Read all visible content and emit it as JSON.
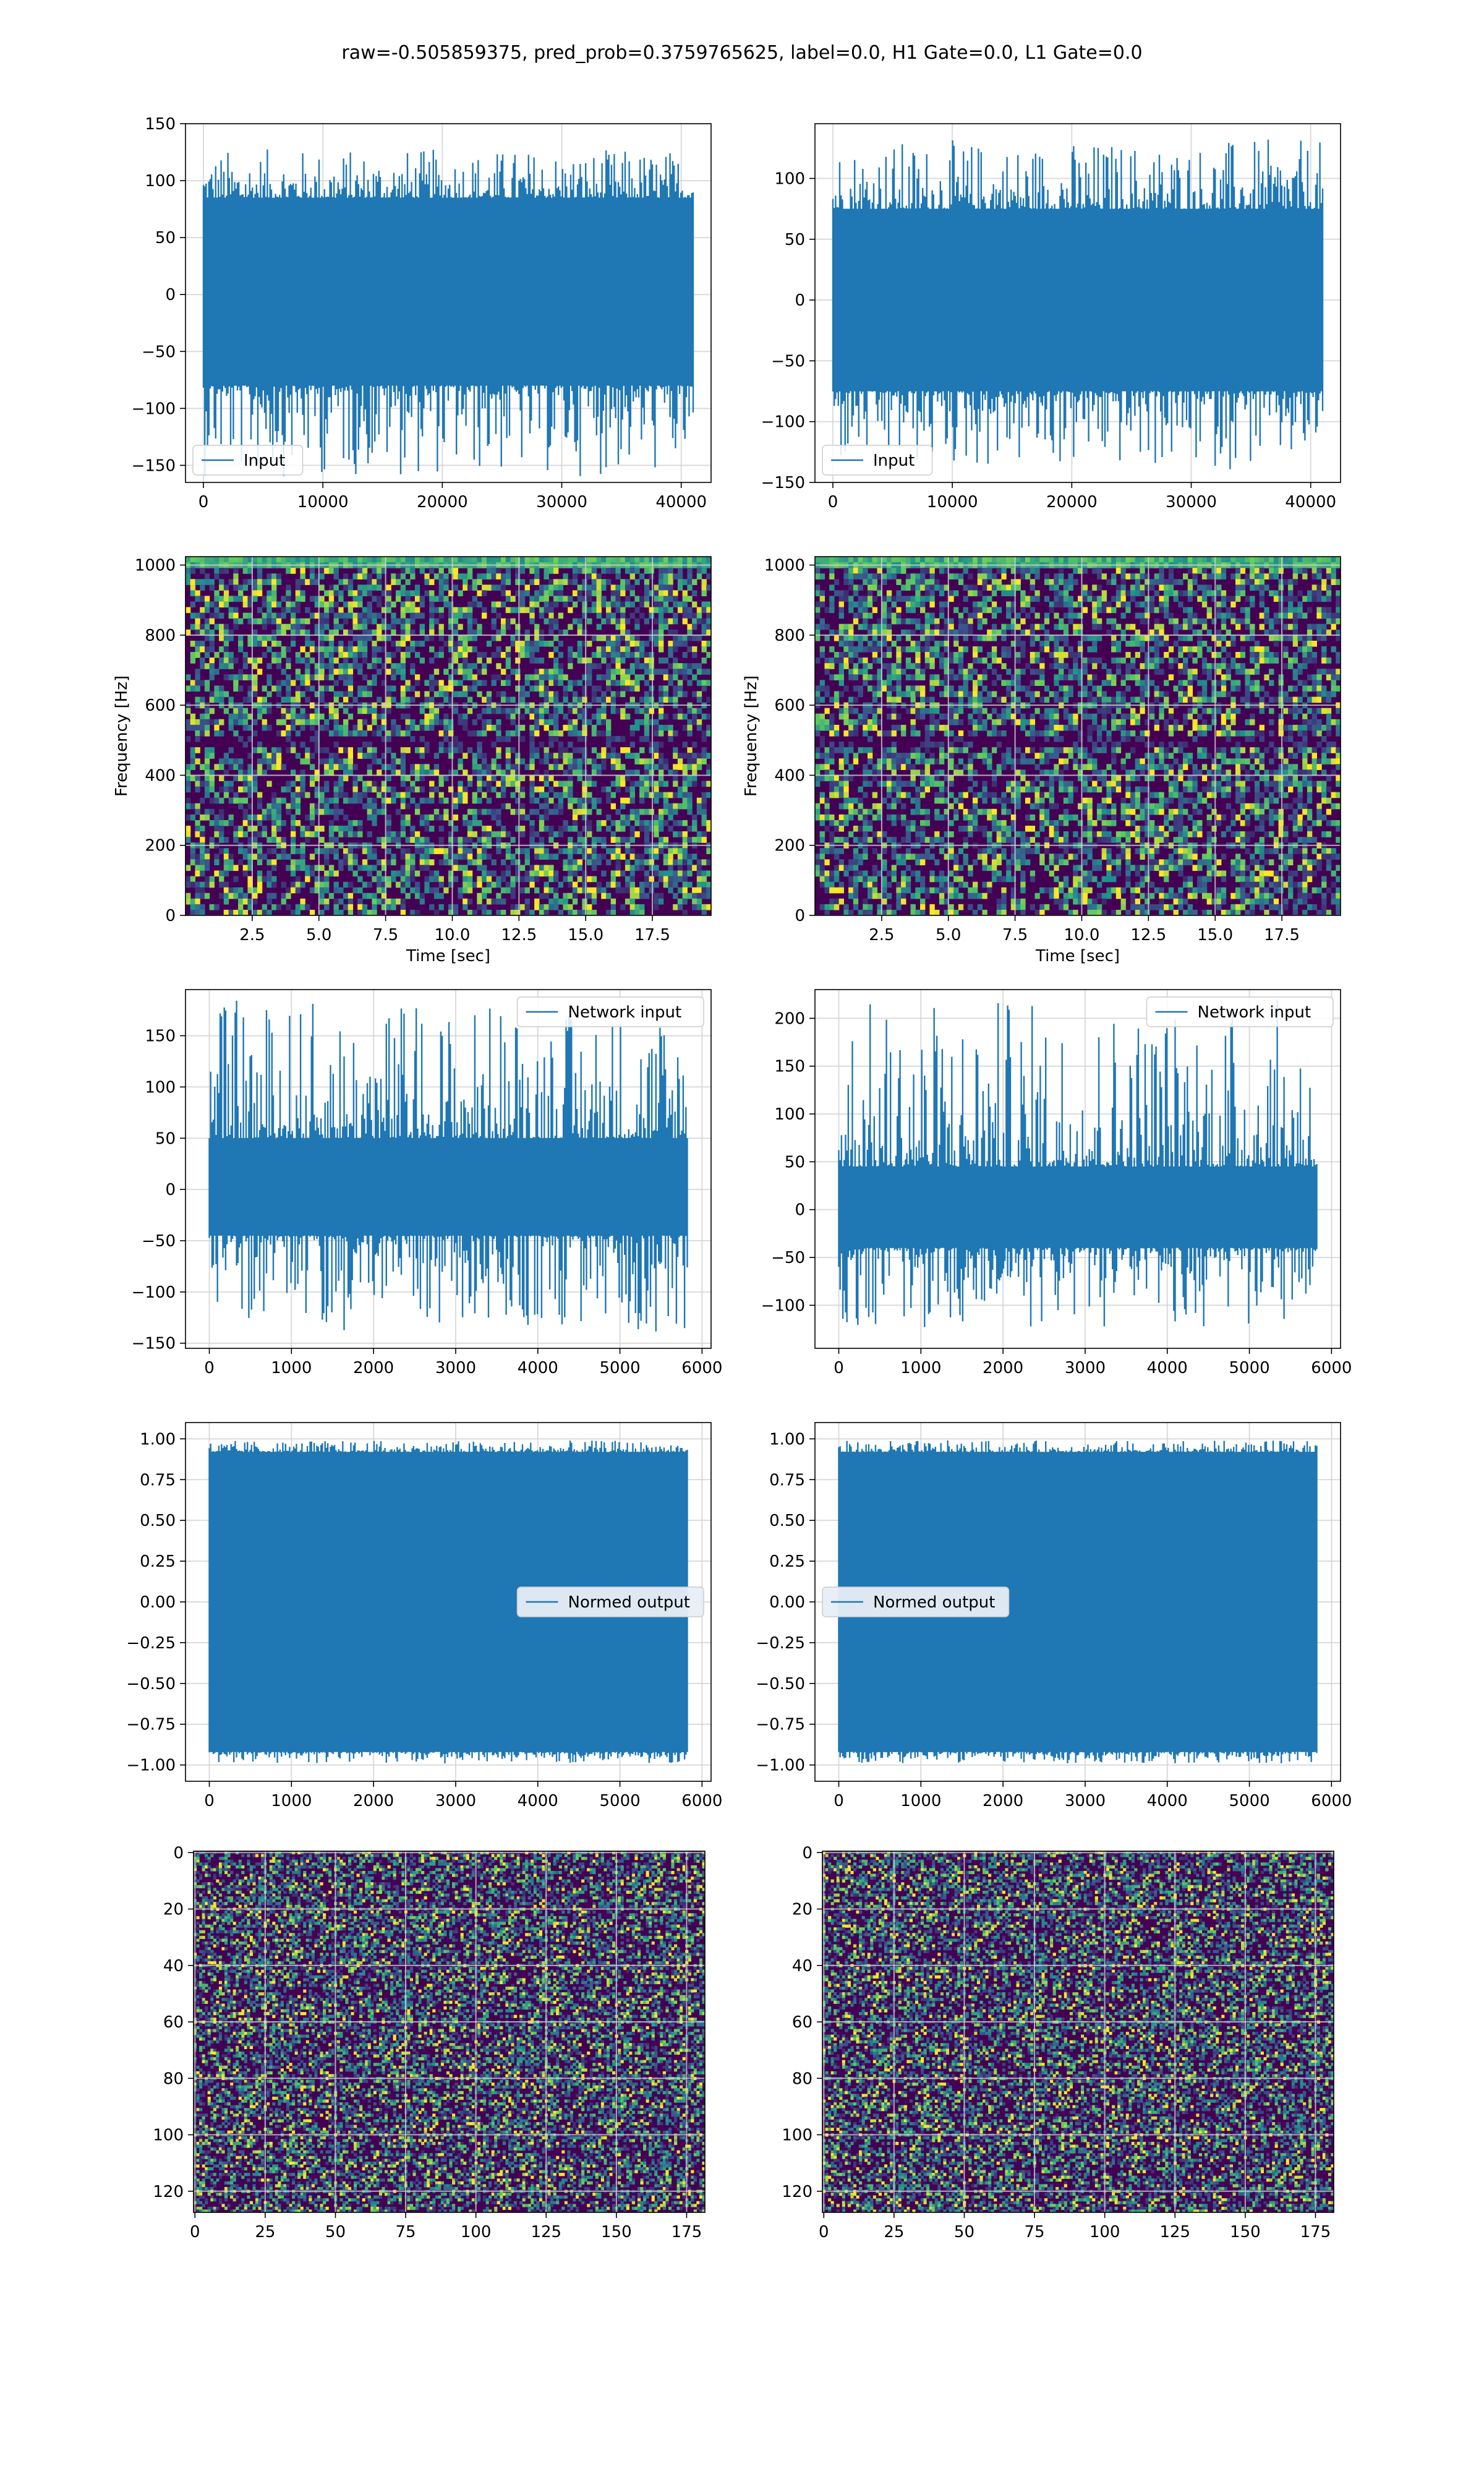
{
  "suptitle": "raw=-0.505859375, pred_prob=0.3759765625, label=0.0, H1 Gate=0.0, L1 Gate=0.0",
  "colors": {
    "line": "#1f77b4",
    "grid": "#d3d3d3",
    "viridis_low": "#440154"
  },
  "chart_data": [
    {
      "type": "line",
      "panel": "row1-left",
      "xlim": [
        -1500,
        42500
      ],
      "ylim": [
        -165,
        150
      ],
      "xticks": [
        0,
        10000,
        20000,
        30000,
        40000
      ],
      "yticks": [
        -150,
        -100,
        -50,
        0,
        50,
        100,
        150
      ],
      "legend": {
        "label": "Input",
        "placement": "lower-left",
        "framealpha": "light"
      },
      "signal": {
        "x_start": 0,
        "x_end": 41000,
        "core_low": -80,
        "core_high": 85,
        "peak_low": -160,
        "peak_high": 128
      },
      "grid": true,
      "title": "",
      "xlabel": "",
      "ylabel": ""
    },
    {
      "type": "line",
      "panel": "row1-right",
      "xlim": [
        -1500,
        42500
      ],
      "ylim": [
        -150,
        145
      ],
      "xticks": [
        0,
        10000,
        20000,
        30000,
        40000
      ],
      "yticks": [
        -150,
        -100,
        -50,
        0,
        50,
        100
      ],
      "legend": {
        "label": "Input",
        "placement": "lower-left",
        "framealpha": "light"
      },
      "signal": {
        "x_start": 0,
        "x_end": 41000,
        "core_low": -75,
        "core_high": 75,
        "peak_low": -140,
        "peak_high": 132
      },
      "grid": true,
      "title": "",
      "xlabel": "",
      "ylabel": ""
    },
    {
      "type": "heatmap",
      "panel": "row2-left",
      "xlim": [
        0,
        19.7
      ],
      "ylim": [
        0,
        1024
      ],
      "xticks": [
        2.5,
        5.0,
        7.5,
        10.0,
        12.5,
        15.0,
        17.5
      ],
      "yticks": [
        0,
        200,
        400,
        600,
        800,
        1000
      ],
      "xlabel": "Time [sec]",
      "ylabel": "Frequency [Hz]",
      "grid": true,
      "colormap": "viridis",
      "title": ""
    },
    {
      "type": "heatmap",
      "panel": "row2-right",
      "xlim": [
        0,
        19.7
      ],
      "ylim": [
        0,
        1024
      ],
      "xticks": [
        2.5,
        5.0,
        7.5,
        10.0,
        12.5,
        15.0,
        17.5
      ],
      "yticks": [
        0,
        200,
        400,
        600,
        800,
        1000
      ],
      "xlabel": "Time [sec]",
      "ylabel": "Frequency [Hz]",
      "grid": true,
      "colormap": "viridis",
      "title": ""
    },
    {
      "type": "line",
      "panel": "row3-left",
      "xlim": [
        -290,
        6110
      ],
      "ylim": [
        -155,
        195
      ],
      "xticks": [
        0,
        1000,
        2000,
        3000,
        4000,
        5000,
        6000
      ],
      "yticks": [
        -150,
        -100,
        -50,
        0,
        50,
        100,
        150
      ],
      "legend": {
        "label": "Network input",
        "placement": "upper-right",
        "framealpha": "light"
      },
      "signal": {
        "x_start": 0,
        "x_end": 5820,
        "core_low": -45,
        "core_high": 50,
        "peak_low": -140,
        "peak_high": 185
      },
      "grid": true,
      "title": "",
      "xlabel": "",
      "ylabel": ""
    },
    {
      "type": "line",
      "panel": "row3-right",
      "xlim": [
        -290,
        6110
      ],
      "ylim": [
        -145,
        230
      ],
      "xticks": [
        0,
        1000,
        2000,
        3000,
        4000,
        5000,
        6000
      ],
      "yticks": [
        -100,
        -50,
        0,
        50,
        100,
        150,
        200
      ],
      "legend": {
        "label": "Network input",
        "placement": "upper-right",
        "framealpha": "light"
      },
      "signal": {
        "x_start": 0,
        "x_end": 5820,
        "core_low": -40,
        "core_high": 45,
        "peak_low": -125,
        "peak_high": 222
      },
      "grid": true,
      "title": "",
      "xlabel": "",
      "ylabel": ""
    },
    {
      "type": "line",
      "panel": "row4-left",
      "xlim": [
        -290,
        6110
      ],
      "ylim": [
        -1.1,
        1.1
      ],
      "xticks": [
        0,
        1000,
        2000,
        3000,
        4000,
        5000,
        6000
      ],
      "yticks": [
        -1.0,
        -0.75,
        -0.5,
        -0.25,
        0.0,
        0.25,
        0.5,
        0.75,
        1.0
      ],
      "legend": {
        "label": "Normed output",
        "placement": "center-right",
        "framealpha": "opaque"
      },
      "signal": {
        "x_start": 0,
        "x_end": 5820,
        "core_low": -0.92,
        "core_high": 0.92,
        "peak_low": -0.99,
        "peak_high": 0.99
      },
      "grid": true,
      "title": "",
      "xlabel": "",
      "ylabel": ""
    },
    {
      "type": "line",
      "panel": "row4-right",
      "xlim": [
        -290,
        6110
      ],
      "ylim": [
        -1.1,
        1.1
      ],
      "xticks": [
        0,
        1000,
        2000,
        3000,
        4000,
        5000,
        6000
      ],
      "yticks": [
        -1.0,
        -0.75,
        -0.5,
        -0.25,
        0.0,
        0.25,
        0.5,
        0.75,
        1.0
      ],
      "legend": {
        "label": "Normed output",
        "placement": "center-left",
        "framealpha": "opaque"
      },
      "signal": {
        "x_start": 0,
        "x_end": 5820,
        "core_low": -0.92,
        "core_high": 0.92,
        "peak_low": -0.99,
        "peak_high": 0.99
      },
      "grid": true,
      "title": "",
      "xlabel": "",
      "ylabel": ""
    },
    {
      "type": "heatmap",
      "panel": "row5-left",
      "xlim": [
        -0.5,
        181.5
      ],
      "ylim": [
        127.5,
        -0.5
      ],
      "xticks": [
        0,
        25,
        50,
        75,
        100,
        125,
        150,
        175
      ],
      "yticks": [
        0,
        20,
        40,
        60,
        80,
        100,
        120
      ],
      "grid": true,
      "colormap": "viridis",
      "title": "",
      "xlabel": "",
      "ylabel": ""
    },
    {
      "type": "heatmap",
      "panel": "row5-right",
      "xlim": [
        -0.5,
        181.5
      ],
      "ylim": [
        127.5,
        -0.5
      ],
      "xticks": [
        0,
        25,
        50,
        75,
        100,
        125,
        150,
        175
      ],
      "yticks": [
        0,
        20,
        40,
        60,
        80,
        100,
        120
      ],
      "grid": true,
      "colormap": "viridis",
      "title": "",
      "xlabel": "",
      "ylabel": ""
    }
  ]
}
